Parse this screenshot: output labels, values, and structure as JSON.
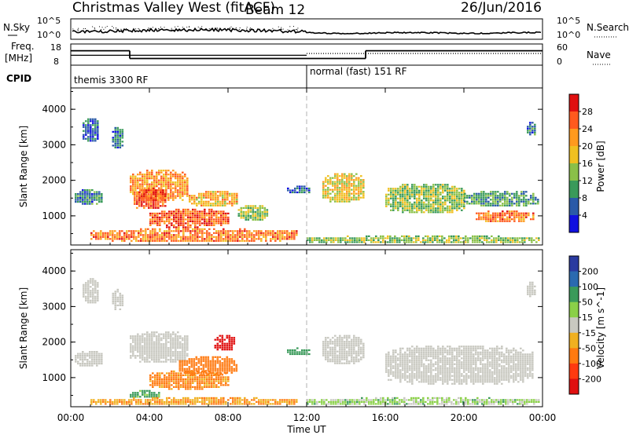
{
  "header": {
    "radar": "Christmas Valley West (fitACF)",
    "beam": "Beam 12",
    "date": "26/Jun/2016"
  },
  "noise_panel": {
    "left_label": "N.Sky",
    "right_label": "N.Search",
    "left_ticks": [
      "10^5",
      "10^0"
    ],
    "right_ticks": [
      "10^5",
      "10^0"
    ]
  },
  "freq_panel": {
    "left_label_1": "Freq.",
    "left_label_2": "[MHz]",
    "right_label": "Nave",
    "left_ticks": [
      "18",
      "8"
    ],
    "right_ticks": [
      "60",
      "0"
    ],
    "freq_segments": [
      {
        "x0": 0.0,
        "x1": 3.0,
        "mhz": 15.0
      },
      {
        "x0": 3.0,
        "x1": 15.0,
        "mhz": 10.5
      },
      {
        "x0": 15.0,
        "x1": 24.0,
        "mhz": 15.0
      }
    ],
    "nave_segments": [
      {
        "x0": 0.0,
        "x1": 12.0,
        "nave": 28,
        "style": "solid"
      },
      {
        "x0": 12.0,
        "x1": 24.0,
        "nave": 33,
        "style": "dotted"
      }
    ]
  },
  "cpid": {
    "label": "CPID",
    "segments": [
      {
        "start": 0.0,
        "text": "themis 3300 RF"
      },
      {
        "start": 12.0,
        "text": "normal (fast) 151 RF"
      }
    ]
  },
  "power_panel": {
    "ylabel": "Slant Range [km]",
    "yticks": [
      1000,
      2000,
      3000,
      4000
    ],
    "colorbar_label": "Power [dB]",
    "colorbar_ticks": [
      "28",
      "24",
      "20",
      "16",
      "12",
      "8",
      "4"
    ]
  },
  "velocity_panel": {
    "ylabel": "Slant Range [km]",
    "yticks": [
      1000,
      2000,
      3000,
      4000
    ],
    "colorbar_label": "Velocity [m s^-1]",
    "colorbar_ticks": [
      "200",
      "100",
      "50",
      "15",
      "-15",
      "-50",
      "-100",
      "-200"
    ]
  },
  "xaxis": {
    "label": "Time UT",
    "ticks": [
      "00:00",
      "04:00",
      "08:00",
      "12:00",
      "16:00",
      "20:00",
      "00:00"
    ]
  },
  "colors": {
    "power_scale": [
      "#e01010",
      "#ff5a1e",
      "#ff9a1e",
      "#f0c020",
      "#8ac048",
      "#3a9a5a",
      "#2a5aa8",
      "#1010e0"
    ],
    "velocity_scale": [
      "#2a3aa0",
      "#2a6ab0",
      "#3a9a5a",
      "#8ad048",
      "#c8c8c0",
      "#f0b020",
      "#ff7a10",
      "#ff3a10",
      "#e01010"
    ]
  },
  "chart_data": [
    {
      "type": "heatmap",
      "title": "Power",
      "xlabel": "Time UT",
      "ylabel": "Slant Range [km]",
      "xlim": [
        0,
        24
      ],
      "ylim": [
        180,
        4600
      ],
      "colorbar": "Power [dB]",
      "clim": [
        0,
        32
      ],
      "echo_regions": [
        {
          "t0": 0.2,
          "t1": 1.6,
          "r0": 1350,
          "r1": 1750,
          "value": 8
        },
        {
          "t0": 0.6,
          "t1": 1.4,
          "r0": 3100,
          "r1": 3800,
          "value": 6
        },
        {
          "t0": 2.1,
          "t1": 2.6,
          "r0": 2900,
          "r1": 3500,
          "value": 7
        },
        {
          "t0": 3.0,
          "t1": 6.0,
          "r0": 1450,
          "r1": 2300,
          "value": 22
        },
        {
          "t0": 3.2,
          "t1": 4.8,
          "r0": 1200,
          "r1": 1800,
          "value": 27
        },
        {
          "t0": 4.0,
          "t1": 8.0,
          "r0": 700,
          "r1": 1200,
          "value": 26
        },
        {
          "t0": 6.0,
          "t1": 8.5,
          "r0": 1300,
          "r1": 1700,
          "value": 20
        },
        {
          "t0": 8.5,
          "t1": 10.0,
          "r0": 900,
          "r1": 1300,
          "value": 14
        },
        {
          "t0": 1.0,
          "t1": 11.5,
          "r0": 300,
          "r1": 650,
          "value": 24
        },
        {
          "t0": 11.0,
          "t1": 12.2,
          "r0": 1650,
          "r1": 1850,
          "value": 6
        },
        {
          "t0": 12.8,
          "t1": 14.9,
          "r0": 1400,
          "r1": 2200,
          "value": 18
        },
        {
          "t0": 16.0,
          "t1": 20.0,
          "r0": 1100,
          "r1": 1900,
          "value": 14
        },
        {
          "t0": 20.6,
          "t1": 23.5,
          "r0": 850,
          "r1": 1150,
          "value": 24
        },
        {
          "t0": 20.0,
          "t1": 23.8,
          "r0": 1300,
          "r1": 1700,
          "value": 10
        },
        {
          "t0": 23.2,
          "t1": 23.6,
          "r0": 3300,
          "r1": 3700,
          "value": 8
        },
        {
          "t0": 12.0,
          "t1": 23.8,
          "r0": 250,
          "r1": 450,
          "value": 14
        }
      ]
    },
    {
      "type": "heatmap",
      "title": "Velocity",
      "xlabel": "Time UT",
      "ylabel": "Slant Range [km]",
      "xlim": [
        0,
        24
      ],
      "ylim": [
        180,
        4600
      ],
      "colorbar": "Velocity [m s^-1]",
      "clim": [
        -250,
        250
      ],
      "echo_regions": [
        {
          "t0": 0.2,
          "t1": 1.6,
          "r0": 1350,
          "r1": 1750,
          "value": 0
        },
        {
          "t0": 0.6,
          "t1": 1.4,
          "r0": 3100,
          "r1": 3800,
          "value": 0
        },
        {
          "t0": 2.1,
          "t1": 2.6,
          "r0": 2900,
          "r1": 3500,
          "value": 0
        },
        {
          "t0": 3.0,
          "t1": 6.0,
          "r0": 1450,
          "r1": 2300,
          "value": 0
        },
        {
          "t0": 4.0,
          "t1": 8.0,
          "r0": 700,
          "r1": 1200,
          "value": -40
        },
        {
          "t0": 5.5,
          "t1": 8.5,
          "r0": 1100,
          "r1": 1600,
          "value": -60
        },
        {
          "t0": 7.3,
          "t1": 8.3,
          "r0": 1800,
          "r1": 2200,
          "value": -180
        },
        {
          "t0": 3.0,
          "t1": 4.5,
          "r0": 450,
          "r1": 650,
          "value": 40
        },
        {
          "t0": 1.0,
          "t1": 11.5,
          "r0": 250,
          "r1": 450,
          "value": -30
        },
        {
          "t0": 11.0,
          "t1": 12.2,
          "r0": 1650,
          "r1": 1850,
          "value": 60
        },
        {
          "t0": 12.8,
          "t1": 14.9,
          "r0": 1400,
          "r1": 2200,
          "value": 0
        },
        {
          "t0": 16.0,
          "t1": 23.5,
          "r0": 850,
          "r1": 1900,
          "value": 0
        },
        {
          "t0": 23.2,
          "t1": 23.6,
          "r0": 3300,
          "r1": 3700,
          "value": 0
        },
        {
          "t0": 12.0,
          "t1": 23.8,
          "r0": 250,
          "r1": 450,
          "value": 20
        }
      ]
    }
  ]
}
